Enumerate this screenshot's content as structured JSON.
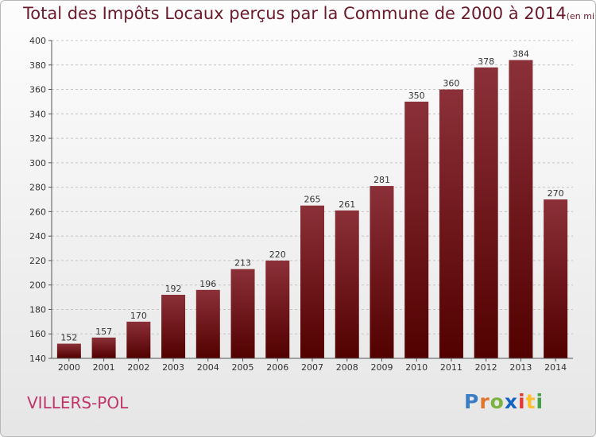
{
  "title": "Total des Impôts Locaux perçus par la Commune de 2000 à 2014",
  "unit_note": "(en milliers d'€)",
  "commune": "VILLERS-POL",
  "logo_text": "Proxiti",
  "colors": {
    "bar_top": "#8b3038",
    "bar_bottom": "#520000",
    "title": "#6b1a2a",
    "commune": "#c0356a"
  },
  "chart_data": {
    "type": "bar",
    "title": "Total des Impôts Locaux perçus par la Commune de 2000 à 2014",
    "xlabel": "",
    "ylabel": "",
    "ylim": [
      140,
      400
    ],
    "yticks": [
      140,
      160,
      180,
      200,
      220,
      240,
      260,
      280,
      300,
      320,
      340,
      360,
      380,
      400
    ],
    "grid": true,
    "categories": [
      "2000",
      "2001",
      "2002",
      "2003",
      "2004",
      "2005",
      "2006",
      "2007",
      "2008",
      "2009",
      "2010",
      "2011",
      "2012",
      "2013",
      "2014"
    ],
    "values": [
      152,
      157,
      170,
      192,
      196,
      213,
      220,
      265,
      261,
      281,
      350,
      360,
      378,
      384,
      270
    ]
  }
}
